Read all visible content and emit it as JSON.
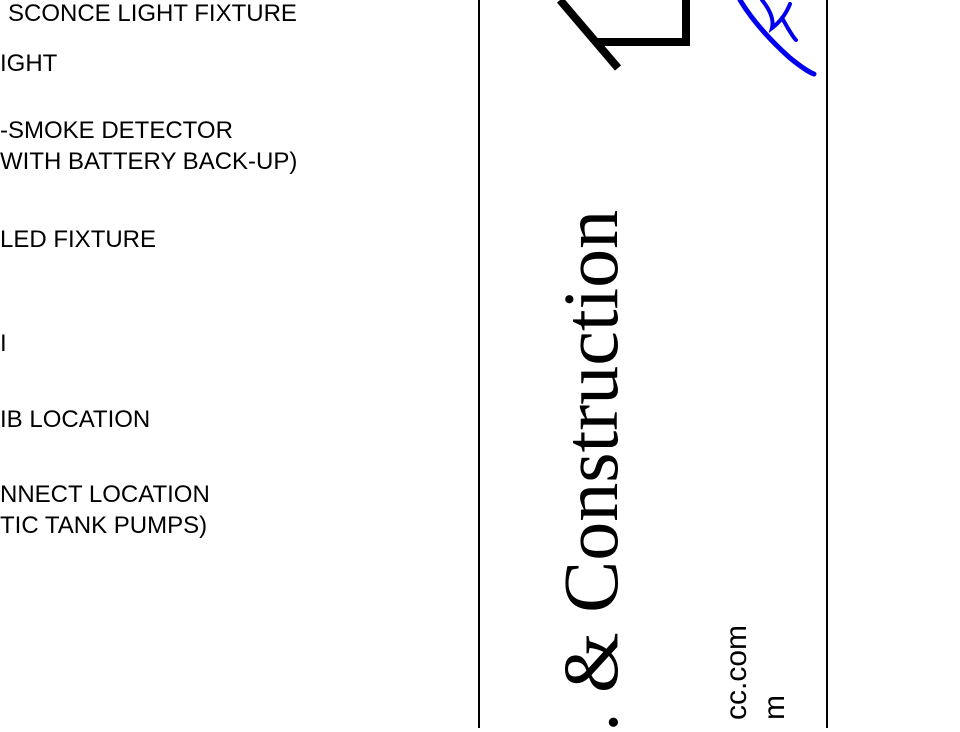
{
  "legend": {
    "items": [
      {
        "lines": [
          "SCONCE LIGHT FIXTURE"
        ]
      },
      {
        "lines": [
          "IGHT"
        ]
      },
      {
        "lines": [
          "-SMOKE DETECTOR",
          "WITH BATTERY BACK-UP)"
        ]
      },
      {
        "lines": [
          "LED FIXTURE"
        ]
      },
      {
        "lines": [
          "I"
        ]
      },
      {
        "lines": [
          "IB LOCATION"
        ]
      },
      {
        "lines": [
          "NNECT LOCATION",
          "TIC TANK PUMPS)"
        ]
      }
    ]
  },
  "title_block": {
    "company_name": ". & Construction",
    "contact": [
      "cc.com",
      "m"
    ],
    "signature_color": "#0000ee"
  }
}
